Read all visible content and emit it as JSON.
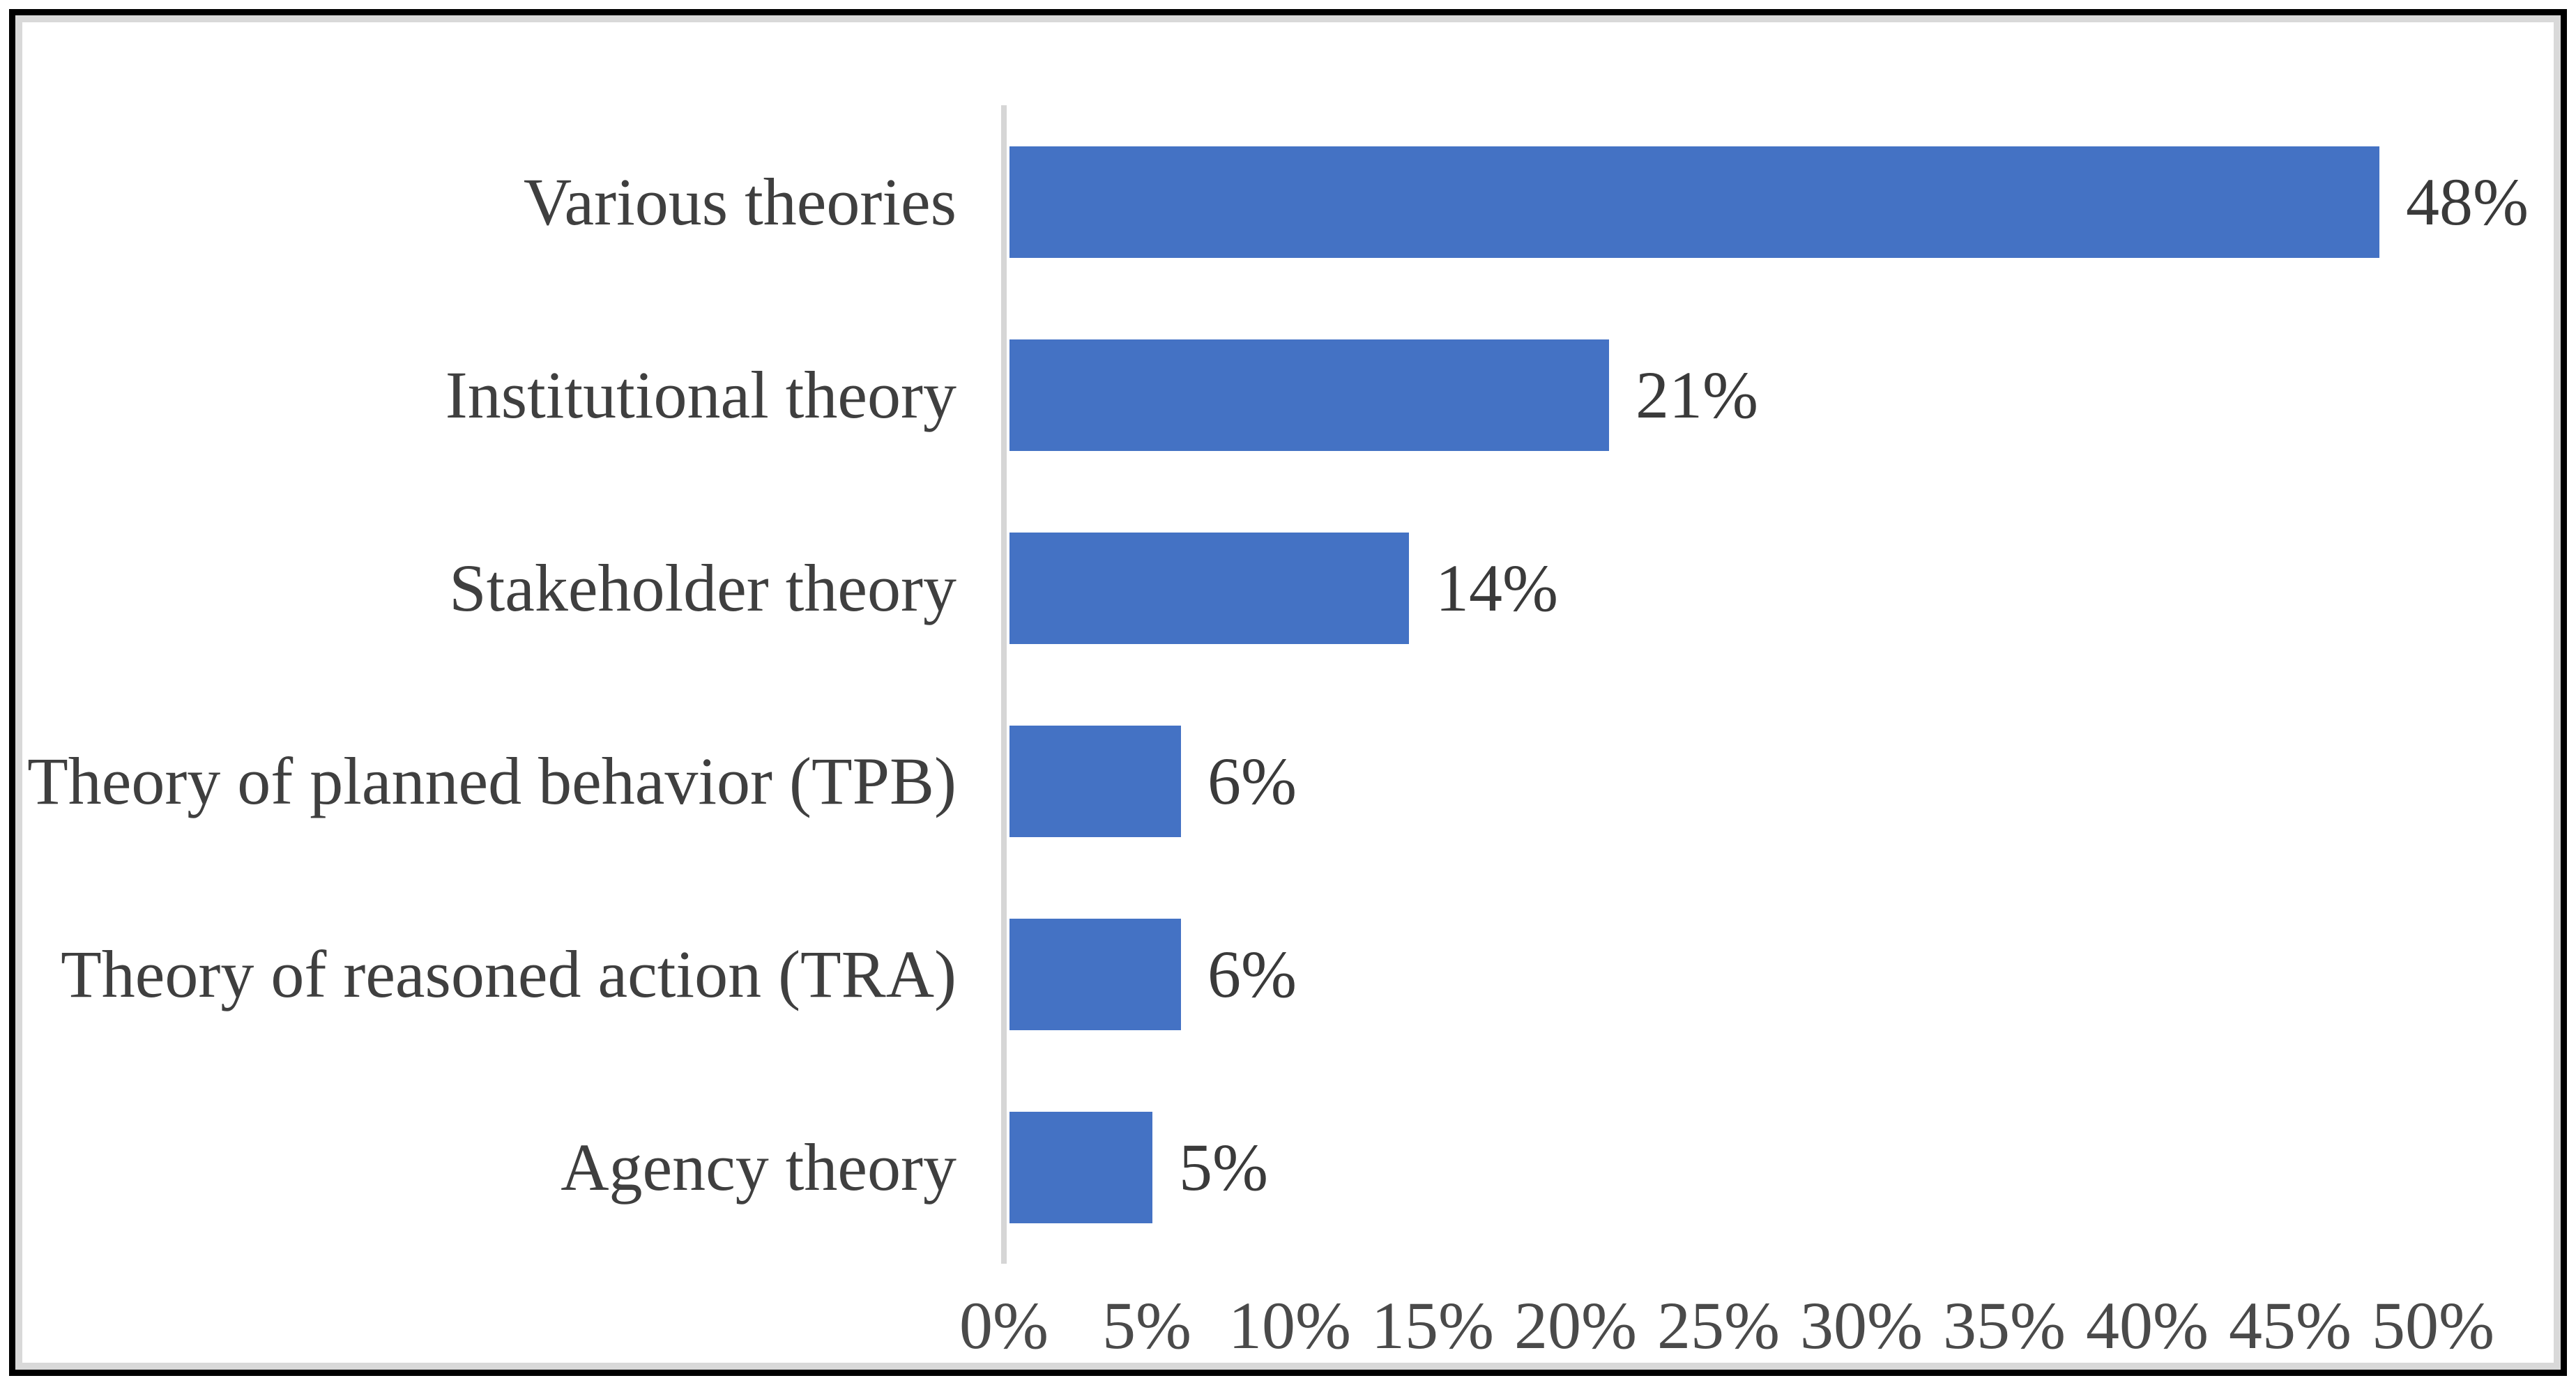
{
  "figure": {
    "background_color": "#ffffff",
    "outer_border_color": "#000000",
    "inner_border_color": "#d9d9d9"
  },
  "chart_data": {
    "type": "bar",
    "orientation": "horizontal",
    "title": "",
    "xlabel": "",
    "ylabel": "",
    "categories": [
      "Various theories",
      "Institutional theory",
      "Stakeholder theory",
      "Theory of planned behavior (TPB)",
      "Theory of reasoned action (TRA)",
      "Agency theory"
    ],
    "values": [
      48,
      21,
      14,
      6,
      6,
      5
    ],
    "data_labels": [
      "48%",
      "21%",
      "14%",
      "6%",
      "6%",
      "5%"
    ],
    "x_ticks": [
      "0%",
      "5%",
      "10%",
      "15%",
      "20%",
      "25%",
      "30%",
      "35%",
      "40%",
      "45%",
      "50%"
    ],
    "x_tick_values": [
      0,
      5,
      10,
      15,
      20,
      25,
      30,
      35,
      40,
      45,
      50
    ],
    "xlim": [
      0,
      50
    ],
    "gridlines": false,
    "legend": false,
    "bar_color": "#4472c4",
    "text_color": "#3f3f3f",
    "axis_line_color": "#d6d6d6"
  }
}
